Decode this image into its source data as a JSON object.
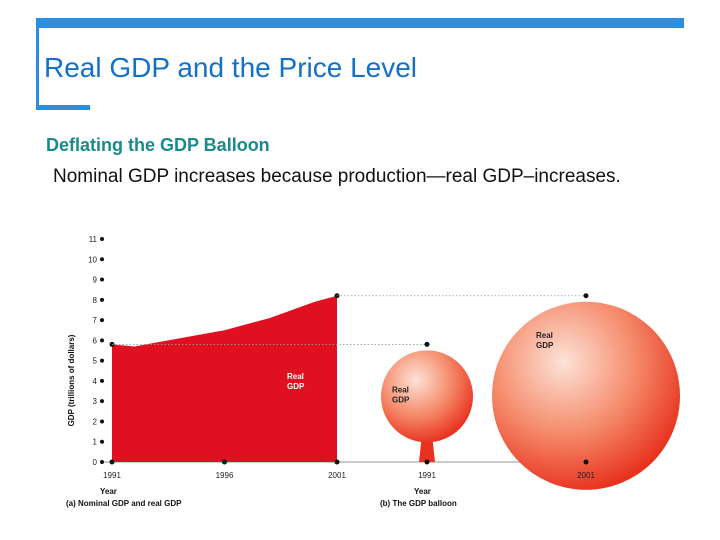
{
  "slide": {
    "title": "Real GDP and the Price Level",
    "subheading": "Deflating the GDP Balloon",
    "body": "Nominal GDP increases because production—real GDP–increases."
  },
  "colors": {
    "accent": "#2a8fe0",
    "title": "#1570c8",
    "subheading": "#1c8a8a",
    "real_gdp_fill": "#e01020",
    "balloon_light": "#fde3d8",
    "balloon_dark": "#e8321e"
  },
  "chart_data": [
    {
      "type": "area",
      "caption": "(a) Nominal GDP and real GDP",
      "xlabel": "Year",
      "ylabel": "GDP (trillions of dollars)",
      "ylim": [
        0,
        11
      ],
      "yticks": [
        0,
        1,
        2,
        3,
        4,
        5,
        6,
        7,
        8,
        9,
        10,
        11
      ],
      "xlim": [
        1991,
        2001
      ],
      "xticks": [
        1991,
        1996,
        2001
      ],
      "series": [
        {
          "name": "Real GDP",
          "x": [
            1991,
            1992,
            1993,
            1994,
            1995,
            1996,
            1997,
            1998,
            1999,
            2000,
            2001
          ],
          "values": [
            5.8,
            5.7,
            5.9,
            6.1,
            6.3,
            6.5,
            6.8,
            7.1,
            7.5,
            7.9,
            8.2
          ]
        }
      ],
      "grid": false
    },
    {
      "type": "other",
      "caption": "(b) The GDP balloon",
      "xlabel": "Year",
      "xticks": [
        1991,
        2001
      ],
      "balloons": [
        {
          "year": 1991,
          "label": "Real GDP",
          "level": 5.8
        },
        {
          "year": 2001,
          "label": "Real GDP",
          "level": 8.2
        }
      ]
    }
  ]
}
